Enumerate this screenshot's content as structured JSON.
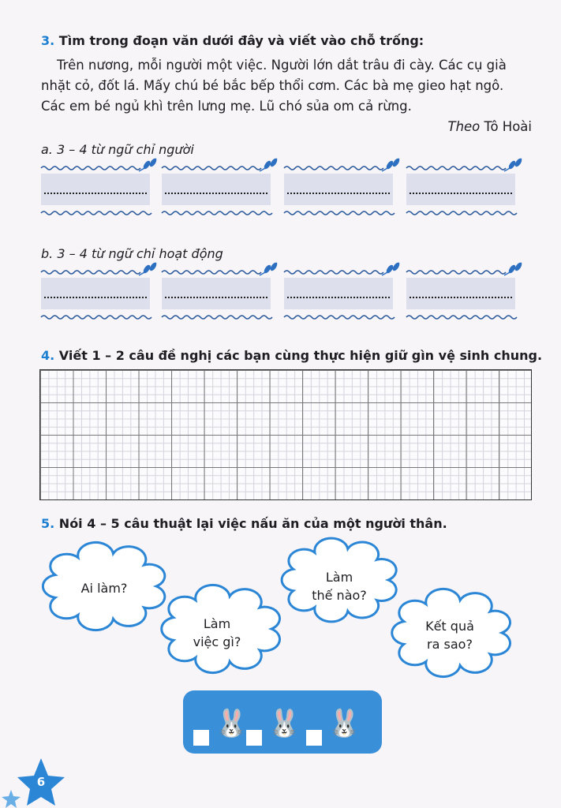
{
  "exercise3": {
    "number": "3.",
    "title": "Tìm trong đoạn văn dưới đây và viết vào chỗ trống:",
    "passage": [
      "Trên nương, mỗi người một việc. Người lớn dắt trâu đi cày. Các cụ già",
      "nhặt cỏ, đốt lá. Mấy chú bé bắc bếp thổi cơm. Các bà mẹ gieo hạt ngô.",
      "Các em bé ngủ khì trên lưng mẹ. Lũ chó sủa om cả rừng."
    ],
    "source_prefix": "Theo",
    "source_author": "Tô Hoài",
    "part_a": "a. 3 – 4 từ ngữ chỉ người",
    "part_b": "b. 3 – 4 từ ngữ chỉ hoạt động"
  },
  "exercise4": {
    "number": "4.",
    "title": "Viết 1 – 2 câu đề nghị các bạn cùng thực hiện giữ gìn vệ sinh chung."
  },
  "exercise5": {
    "number": "5.",
    "title": "Nói 4 – 5 câu thuật lại việc nấu ăn của một người thân.",
    "clouds": [
      {
        "lines": [
          "Ai làm?"
        ]
      },
      {
        "lines": [
          "Làm",
          "việc gì?"
        ]
      },
      {
        "lines": [
          "Làm",
          "thế nào?"
        ]
      },
      {
        "lines": [
          "Kết quả",
          "ra sao?"
        ]
      }
    ]
  },
  "self_assessment": {
    "icons": [
      "bunny-neutral-icon",
      "bunny-ok-icon",
      "bunny-happy-icon"
    ]
  },
  "page_number": "6",
  "colors": {
    "accent": "#1c7fd0",
    "box": "#dde0ec",
    "bar": "#3a8fd9"
  }
}
